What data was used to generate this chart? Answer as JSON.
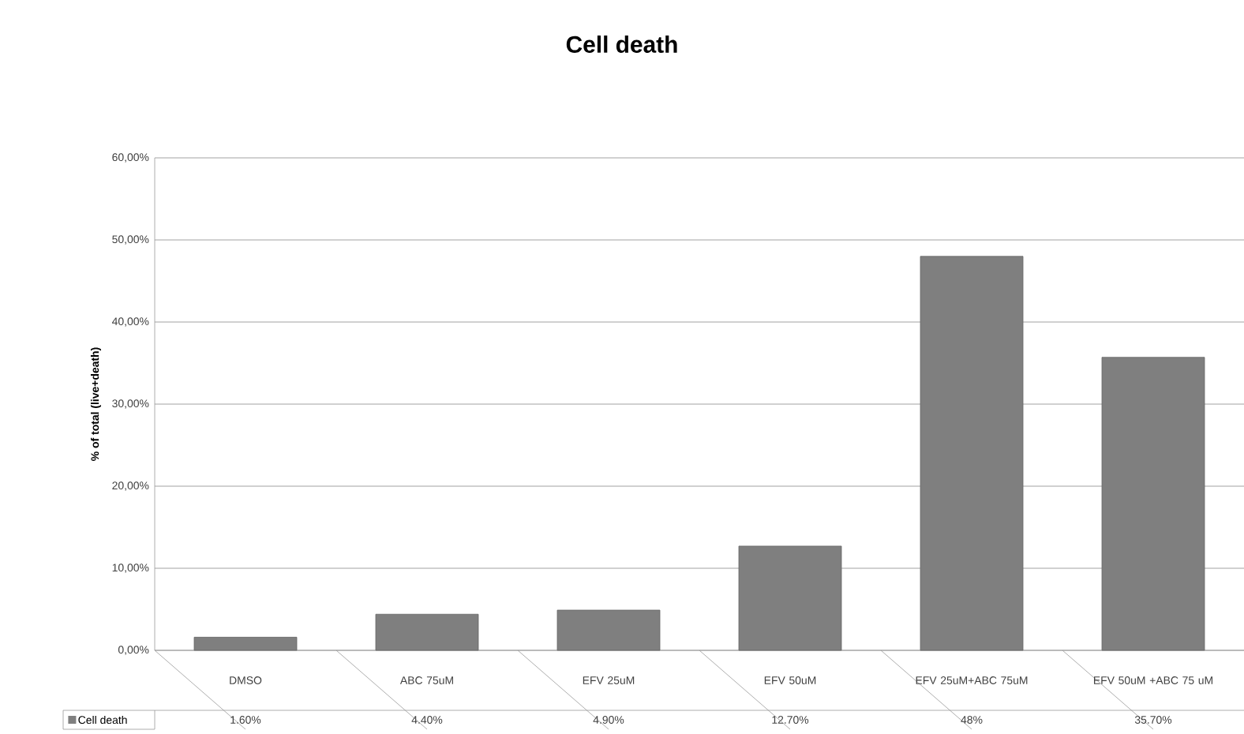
{
  "chart_data": {
    "type": "bar",
    "title": "Cell death",
    "ylabel": "% of total (live+death)",
    "categories": [
      "DMSO",
      "ABC 75uM",
      "EFV 25uM",
      "EFV 50uM",
      "EFV 25uM+ABC 75uM",
      "EFV 50uM +ABC 75 uM"
    ],
    "series": [
      {
        "name": "Cell death",
        "color": "#7f7f7f",
        "values": [
          1.6,
          4.4,
          4.9,
          12.7,
          48,
          35.7
        ],
        "value_labels": [
          "1.60%",
          "4.40%",
          "4.90%",
          "12.70%",
          "48%",
          "35.70%"
        ]
      }
    ],
    "ylim": [
      0,
      60
    ],
    "yticks": [
      {
        "value": 0,
        "label": "0,00%"
      },
      {
        "value": 10,
        "label": "10,00%"
      },
      {
        "value": 20,
        "label": "20,00%"
      },
      {
        "value": 30,
        "label": "30,00%"
      },
      {
        "value": 40,
        "label": "40,00%"
      },
      {
        "value": 50,
        "label": "50,00%"
      },
      {
        "value": 60,
        "label": "60,00%"
      }
    ],
    "grid": "y",
    "legend": "bottom"
  }
}
